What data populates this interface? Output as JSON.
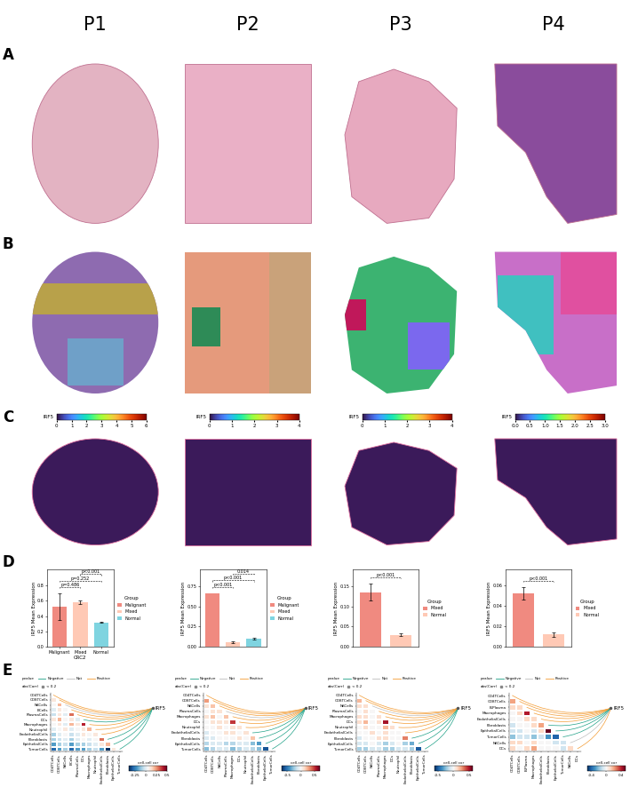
{
  "panel_labels": [
    "P1",
    "P2",
    "P3",
    "P4"
  ],
  "row_labels": [
    "A",
    "B",
    "C",
    "D",
    "E"
  ],
  "expression_maps": [
    {
      "colorbar_label": "IRF5",
      "clim": [
        0,
        6
      ],
      "ticks": [
        0,
        1,
        2,
        3,
        4,
        5,
        6
      ]
    },
    {
      "colorbar_label": "IRF5",
      "clim": [
        0,
        4
      ],
      "ticks": [
        0,
        1,
        2,
        3,
        4
      ]
    },
    {
      "colorbar_label": "IRF5",
      "clim": [
        0,
        4
      ],
      "ticks": [
        0,
        1,
        2,
        3,
        4
      ]
    },
    {
      "colorbar_label": "IRF5",
      "clim": [
        0,
        3
      ],
      "ticks": [
        {
          "value": 0,
          "label": "0.0"
        },
        {
          "value": 0.5,
          "label": "0.5"
        },
        {
          "value": 1,
          "label": "1.0"
        },
        {
          "value": 1.5,
          "label": "1.5"
        },
        {
          "value": 2,
          "label": "2.0"
        },
        {
          "value": 2.5,
          "label": "2.5"
        },
        {
          "value": 3,
          "label": "3.0"
        }
      ]
    }
  ],
  "chart_data": [
    {
      "type": "bar",
      "categories": [
        "Malignant",
        "Mixed",
        "Normal"
      ],
      "values": [
        0.52,
        0.58,
        0.32
      ],
      "errors": [
        0.17,
        0.02,
        0.01
      ],
      "colors": [
        "#F08A80",
        "#FFC9B5",
        "#7FD4E0"
      ],
      "ylabel": "IRF5 Mean Expression",
      "xlabel": "CRC2",
      "ylim": [
        0,
        1.0
      ],
      "yticks": [
        {
          "value": 0,
          "label": "0.0"
        },
        {
          "value": 0.2,
          "label": "0.2"
        },
        {
          "value": 0.4,
          "label": "0.4"
        },
        {
          "value": 0.6,
          "label": "0.6"
        },
        {
          "value": 0.8,
          "label": "0.8"
        }
      ],
      "legend": "right",
      "legend_title": "Group",
      "comparisons": [
        {
          "groups": [
            "Malignant",
            "Mixed"
          ],
          "label": "p=0.486"
        },
        {
          "groups": [
            "Malignant",
            "Normal"
          ],
          "label": "p=0.252"
        },
        {
          "groups": [
            "Mixed",
            "Normal"
          ],
          "label": "p<0.001"
        }
      ]
    },
    {
      "type": "bar",
      "categories": [
        "Malignant",
        "Mixed",
        "Normal"
      ],
      "values": [
        0.66,
        0.06,
        0.1
      ],
      "errors": [
        null,
        0.01,
        0.01
      ],
      "colors": [
        "#F08A80",
        "#FFC9B5",
        "#7FD4E0"
      ],
      "ylabel": "IRF5 Mean Expression",
      "tick_labels": "y",
      "ylim": [
        0,
        0.95
      ],
      "yticks": [
        {
          "value": 0,
          "label": "0.00"
        },
        {
          "value": 0.25,
          "label": "0.25"
        },
        {
          "value": 0.5,
          "label": "0.50"
        },
        {
          "value": 0.75,
          "label": "0.75"
        }
      ],
      "legend": "right",
      "legend_title": "Group",
      "comparisons": [
        {
          "groups": [
            "Malignant",
            "Mixed"
          ],
          "label": "p<0.001"
        },
        {
          "groups": [
            "Malignant",
            "Normal"
          ],
          "label": "p<0.001"
        },
        {
          "groups": [
            "Mixed",
            "Normal"
          ],
          "label": "0.014"
        }
      ]
    },
    {
      "type": "bar",
      "categories": [
        "Mixed",
        "Normal"
      ],
      "values": [
        0.135,
        0.03
      ],
      "errors": [
        0.02,
        0.003
      ],
      "colors": [
        "#F08A80",
        "#FFC9B5"
      ],
      "ylabel": "IRF5 Mean Expression",
      "tick_labels": "y",
      "ylim": [
        0,
        0.19
      ],
      "yticks": [
        {
          "value": 0,
          "label": "0.00"
        },
        {
          "value": 0.05,
          "label": "0.05"
        },
        {
          "value": 0.1,
          "label": "0.10"
        },
        {
          "value": 0.15,
          "label": "0.15"
        }
      ],
      "legend": "right",
      "legend_title": "Group",
      "comparisons": [
        {
          "groups": [
            "Mixed",
            "Normal"
          ],
          "label": "p<0.001"
        }
      ]
    },
    {
      "type": "bar",
      "categories": [
        "Mixed",
        "Normal"
      ],
      "values": [
        0.052,
        0.012
      ],
      "errors": [
        0.006,
        0.002
      ],
      "colors": [
        "#F08A80",
        "#FFC9B5"
      ],
      "ylabel": "IRF5 Mean Expression",
      "tick_labels": "y",
      "ylim": [
        0,
        0.075
      ],
      "yticks": [
        {
          "value": 0,
          "label": "0.00"
        },
        {
          "value": 0.02,
          "label": "0.02"
        },
        {
          "value": 0.04,
          "label": "0.04"
        },
        {
          "value": 0.06,
          "label": "0.06"
        }
      ],
      "legend": "right",
      "legend_title": "Group",
      "comparisons": [
        {
          "groups": [
            "Mixed",
            "Normal"
          ],
          "label": "p<0.001"
        }
      ]
    },
    {
      "type": "heatmap",
      "node": "IRF5",
      "categories": [
        "CD4TCells",
        "CD8TCells",
        "NKCells",
        "BCells",
        "PlasmaCells",
        "DCs",
        "Macrophages",
        "Neutrophil",
        "EndothelialCells",
        "Fibroblasts",
        "EpithelialCells",
        "TumorCells"
      ],
      "cells": [
        [],
        [
          0.1
        ],
        [
          0.05,
          0.2
        ],
        [
          0.0,
          0.1,
          0.05
        ],
        [
          -0.05,
          0.1,
          0.0,
          0.3
        ],
        [
          0.1,
          0.2,
          0.05,
          0.1,
          0.0
        ],
        [
          0.05,
          0.1,
          0.0,
          0.2,
          0.1,
          0.4
        ],
        [
          0.0,
          0.05,
          0.1,
          0.0,
          0.05,
          0.1,
          0.2
        ],
        [
          -0.1,
          0.0,
          0.05,
          -0.05,
          0.0,
          0.1,
          0.05,
          0.1
        ],
        [
          -0.1,
          -0.05,
          0.0,
          -0.1,
          0.0,
          0.05,
          0.0,
          0.05,
          0.3
        ],
        [
          -0.2,
          -0.1,
          -0.05,
          -0.2,
          -0.1,
          -0.1,
          -0.05,
          0.0,
          0.1,
          0.2
        ],
        [
          -0.3,
          -0.2,
          -0.1,
          -0.3,
          -0.2,
          -0.2,
          -0.1,
          -0.05,
          -0.2,
          -0.4,
          0.1
        ]
      ],
      "clim": [
        -0.4,
        0.5
      ],
      "cticks": [
        -0.25,
        0,
        0.25,
        0.5
      ],
      "colorbar_label": "cell-cell cor",
      "links": [
        "Positive",
        "Positive",
        "Not",
        "Positive",
        "Positive",
        "Negative",
        "Positive",
        "Positive",
        "Positive",
        "Negative",
        "Negative",
        "Negative"
      ],
      "link_legend_title": "pvalue",
      "size_legend_title": "abs(Corr)",
      "size_legend_label": "< 0.2"
    },
    {
      "type": "heatmap",
      "node": "IRF5",
      "categories": [
        "CD4TCells",
        "CD8TCells",
        "NKCells",
        "PlasmaCells",
        "Macrophages",
        "DCs",
        "Neutrophil",
        "EndothelialCells",
        "Fibroblasts",
        "EpithelialCells",
        "TumorCells"
      ],
      "cells": [
        [],
        [
          0.3
        ],
        [
          0.1,
          0.2
        ],
        [
          0.0,
          0.1,
          0.1
        ],
        [
          0.1,
          0.2,
          0.0,
          0.2
        ],
        [
          0.0,
          0.1,
          0.1,
          0.1,
          0.5
        ],
        [
          0.0,
          0.0,
          0.1,
          0.0,
          0.1,
          0.1
        ],
        [
          -0.1,
          0.0,
          0.0,
          0.1,
          0.1,
          0.0,
          0.1
        ],
        [
          -0.1,
          -0.1,
          0.0,
          0.0,
          0.0,
          0.1,
          0.0,
          0.2
        ],
        [
          -0.2,
          -0.1,
          -0.1,
          -0.2,
          -0.2,
          -0.1,
          -0.1,
          -0.3,
          -0.4
        ],
        [
          -0.3,
          -0.2,
          -0.1,
          -0.1,
          -0.3,
          -0.2,
          -0.1,
          -0.2,
          -0.3,
          -0.6
        ]
      ],
      "clim": [
        -0.7,
        0.7
      ],
      "cticks": [
        -0.5,
        0,
        0.5
      ],
      "colorbar_label": "cell-cell cor",
      "links": [
        "Positive",
        "Positive",
        "Positive",
        "Not",
        "Positive",
        "Positive",
        "Positive",
        "Negative",
        "Negative",
        "Negative",
        "Negative"
      ],
      "link_legend_title": "pvalue",
      "size_legend_title": "abs(Corr)",
      "size_legend_label": "< 0.2"
    },
    {
      "type": "heatmap",
      "node": "IRF5",
      "categories": [
        "CD4TCells",
        "CD8TCells",
        "NKCells",
        "PlasmaCells",
        "Macrophages",
        "DCs",
        "Neutrophil",
        "EndothelialCells",
        "Fibroblasts",
        "EpithelialCells",
        "TumorCells"
      ],
      "cells": [
        [],
        [
          0.2
        ],
        [
          0.1,
          0.1
        ],
        [
          0.0,
          0.1,
          0.0
        ],
        [
          0.1,
          0.1,
          0.0,
          0.1
        ],
        [
          0.1,
          0.2,
          0.0,
          0.1,
          0.5
        ],
        [
          0.0,
          0.1,
          0.0,
          0.0,
          0.2,
          0.1
        ],
        [
          0.0,
          0.0,
          0.1,
          0.0,
          0.1,
          0.0,
          0.0
        ],
        [
          -0.1,
          0.0,
          0.0,
          0.1,
          0.1,
          0.0,
          0.0,
          0.3
        ],
        [
          -0.1,
          -0.1,
          0.0,
          -0.1,
          -0.2,
          -0.1,
          0.0,
          -0.2,
          -0.3
        ],
        [
          -0.2,
          -0.2,
          -0.1,
          -0.1,
          -0.2,
          -0.2,
          -0.1,
          -0.1,
          -0.2,
          -0.5
        ]
      ],
      "clim": [
        -0.6,
        0.6
      ],
      "cticks": [
        -0.5,
        0,
        0.5
      ],
      "colorbar_label": "cell-cell cor",
      "links": [
        "Positive",
        "Positive",
        "Not",
        "Positive",
        "Positive",
        "Positive",
        "Positive",
        "Positive",
        "Negative",
        "Negative",
        "Negative"
      ],
      "link_legend_title": "pvalue",
      "size_legend_title": "abs(Corr)",
      "size_legend_label": "< 0.2"
    },
    {
      "type": "heatmap",
      "node": "IRF5",
      "categories": [
        "CD4TCells",
        "CD8TCells",
        "B.Plasma",
        "Macrophages",
        "EndothelialCells",
        "Fibroblasts",
        "EpithelialCells",
        "TumorCells",
        "NKCells",
        "DCs"
      ],
      "cells": [
        [],
        [
          0.2
        ],
        [
          0.1,
          0.1
        ],
        [
          0.0,
          0.1,
          0.4
        ],
        [
          0.0,
          0.0,
          0.1,
          0.1
        ],
        [
          -0.1,
          0.0,
          0.0,
          0.1,
          0.2
        ],
        [
          -0.1,
          -0.1,
          0.0,
          -0.1,
          0.1,
          0.5
        ],
        [
          -0.2,
          -0.1,
          -0.1,
          -0.2,
          -0.1,
          -0.3,
          -0.4
        ],
        [
          0.1,
          0.1,
          0.0,
          0.1,
          0.0,
          0.0,
          -0.1,
          -0.1
        ],
        [
          0.1,
          0.0,
          0.1,
          0.2,
          0.0,
          0.0,
          0.0,
          -0.1,
          0.1
        ]
      ],
      "clim": [
        -0.5,
        0.5
      ],
      "cticks": [
        -0.4,
        0,
        0.4
      ],
      "colorbar_label": "cell-cell cor",
      "links": [
        "Positive",
        "Positive",
        "Positive",
        "Positive",
        "Positive",
        "Negative",
        "Negative",
        "Negative",
        "Not",
        "Positive"
      ],
      "link_legend_title": "pvalue",
      "size_legend_title": "abs(Corr)",
      "size_legend_label": "< 0.2"
    }
  ],
  "link_classes": [
    {
      "name": "Negative",
      "color": "#1fa187"
    },
    {
      "name": "Not",
      "color": "#bdbdbd"
    },
    {
      "name": "Positive",
      "color": "#f39c34"
    }
  ]
}
